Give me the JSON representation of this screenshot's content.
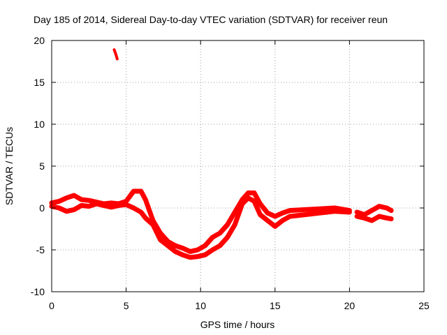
{
  "chart_data": {
    "type": "line",
    "title": "Day 185 of 2014, Sidereal Day-to-day VTEC variation (SDTVAR) for receiver reun",
    "xlabel": "GPS time / hours",
    "ylabel": "SDTVAR / TECUs",
    "xlim": [
      0,
      25
    ],
    "ylim": [
      -10,
      20
    ],
    "xticks": [
      0,
      5,
      10,
      15,
      20,
      25
    ],
    "yticks": [
      -10,
      -5,
      0,
      5,
      10,
      15,
      20
    ],
    "xtick_labels": [
      "0",
      "5",
      "10",
      "15",
      "20",
      "25"
    ],
    "ytick_labels": [
      "-10",
      "-5",
      "0",
      "5",
      "10",
      "15",
      "20"
    ],
    "grid": true,
    "series_color": "#ff0000",
    "series": [
      {
        "name": "main-upper",
        "x": [
          0,
          0.5,
          1,
          1.5,
          2,
          2.5,
          3,
          3.5,
          4,
          4.5,
          5,
          5.5,
          6,
          6.3,
          6.8,
          7.3,
          7.8,
          8.3,
          8.8,
          9.3,
          9.8,
          10.3,
          10.8,
          11.3,
          11.8,
          12.3,
          12.8,
          13.2,
          13.6,
          14.0,
          14.5,
          15,
          15.5,
          16,
          17,
          18,
          19,
          20
        ],
        "y": [
          0.6,
          0.8,
          1.2,
          1.5,
          1.0,
          0.9,
          0.7,
          0.5,
          0.6,
          0.5,
          0.8,
          2.0,
          2.0,
          1.0,
          -1.5,
          -3.0,
          -4.0,
          -4.5,
          -4.8,
          -5.2,
          -5.0,
          -4.5,
          -3.5,
          -3.0,
          -2.0,
          -0.5,
          1.0,
          1.8,
          1.8,
          0.5,
          -0.6,
          -1.0,
          -0.6,
          -0.3,
          -0.2,
          -0.1,
          0.0,
          -0.3
        ]
      },
      {
        "name": "main-lower",
        "x": [
          0,
          0.5,
          1,
          1.5,
          2,
          2.5,
          3,
          3.5,
          4,
          4.5,
          5,
          5.5,
          6,
          6.3,
          6.8,
          7.3,
          7.8,
          8.3,
          8.8,
          9.3,
          9.8,
          10.3,
          10.8,
          11.3,
          11.8,
          12.3,
          12.8,
          13.2,
          13.6,
          14.0,
          14.5,
          15,
          15.5,
          16,
          17,
          18,
          19,
          20
        ],
        "y": [
          0.2,
          0.0,
          -0.4,
          -0.2,
          0.3,
          0.2,
          0.5,
          0.3,
          0.1,
          0.3,
          0.4,
          0.0,
          -0.5,
          -1.2,
          -2.0,
          -3.8,
          -4.5,
          -5.2,
          -5.6,
          -5.9,
          -5.8,
          -5.6,
          -5.0,
          -4.5,
          -3.5,
          -2.0,
          0.5,
          1.2,
          0.8,
          -0.8,
          -1.5,
          -2.2,
          -1.5,
          -1.0,
          -0.8,
          -0.6,
          -0.4,
          -0.5
        ]
      },
      {
        "name": "late",
        "x": [
          20.5,
          21,
          21.5,
          22,
          22.5,
          22.8
        ],
        "y": [
          -0.5,
          -0.8,
          -0.3,
          0.2,
          0.0,
          -0.3
        ]
      },
      {
        "name": "late-lower",
        "x": [
          20.5,
          21,
          21.5,
          22,
          22.5,
          22.8
        ],
        "y": [
          -1.0,
          -1.2,
          -1.5,
          -1.0,
          -1.2,
          -1.3
        ]
      },
      {
        "name": "outlier",
        "x": [
          4.2,
          4.3,
          4.4
        ],
        "y": [
          18.9,
          18.4,
          17.8
        ]
      }
    ]
  }
}
